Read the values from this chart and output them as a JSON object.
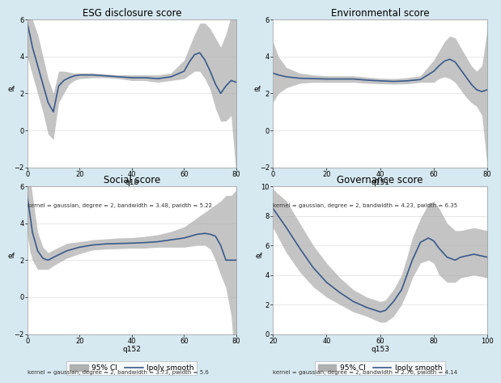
{
  "figure_bg": "#d6e8f0",
  "panel_bg": "#ffffff",
  "panels": [
    {
      "title": "ESG disclosure score",
      "xlabel": "q1b",
      "ylabel": "ef",
      "xlim": [
        0,
        80
      ],
      "ylim": [
        -2,
        6
      ],
      "yticks": [
        -2,
        0,
        2,
        4,
        6
      ],
      "xticks": [
        0,
        20,
        40,
        60,
        80
      ],
      "footnote": "kernel = gaussian, degree = 2, bandwidth = 3.48, pwidth = 5.22",
      "smooth_x": [
        0,
        1,
        2,
        4,
        6,
        8,
        10,
        12,
        14,
        16,
        18,
        20,
        25,
        30,
        35,
        40,
        45,
        50,
        55,
        60,
        62,
        64,
        66,
        68,
        70,
        72,
        74,
        76,
        78,
        80
      ],
      "smooth_y": [
        5.8,
        5.2,
        4.5,
        3.5,
        2.5,
        1.5,
        1.0,
        2.4,
        2.7,
        2.85,
        2.95,
        3.0,
        3.0,
        2.95,
        2.9,
        2.85,
        2.85,
        2.8,
        2.9,
        3.2,
        3.7,
        4.1,
        4.2,
        3.8,
        3.2,
        2.5,
        2.0,
        2.4,
        2.7,
        2.6
      ],
      "ci_upper": [
        7.5,
        6.8,
        6.0,
        5.2,
        4.0,
        2.8,
        2.0,
        3.2,
        3.2,
        3.15,
        3.1,
        3.1,
        3.1,
        3.05,
        3.0,
        3.0,
        3.0,
        3.0,
        3.1,
        3.8,
        4.5,
        5.2,
        5.8,
        5.8,
        5.5,
        5.0,
        4.5,
        5.2,
        6.2,
        7.0
      ],
      "ci_lower": [
        4.0,
        3.5,
        3.0,
        2.0,
        1.0,
        -0.2,
        -0.5,
        1.5,
        2.0,
        2.5,
        2.7,
        2.8,
        2.85,
        2.85,
        2.8,
        2.7,
        2.7,
        2.6,
        2.7,
        2.8,
        3.0,
        3.2,
        3.2,
        2.8,
        2.2,
        1.2,
        0.5,
        0.5,
        0.8,
        -2.5
      ]
    },
    {
      "title": "Environmental score",
      "xlabel": "q151",
      "ylabel": "ef",
      "xlim": [
        0,
        80
      ],
      "ylim": [
        -2,
        6
      ],
      "yticks": [
        -2,
        0,
        2,
        4,
        6
      ],
      "xticks": [
        0,
        20,
        40,
        60,
        80
      ],
      "footnote": "kernel = gaussian, degree = 2, bandwidth = 4.23, pwidth = 6.35",
      "smooth_x": [
        0,
        2,
        5,
        10,
        15,
        20,
        25,
        30,
        35,
        40,
        45,
        50,
        55,
        60,
        62,
        64,
        66,
        68,
        70,
        72,
        74,
        76,
        78,
        80
      ],
      "smooth_y": [
        3.1,
        3.0,
        2.9,
        2.82,
        2.8,
        2.78,
        2.78,
        2.78,
        2.72,
        2.68,
        2.65,
        2.68,
        2.75,
        3.2,
        3.5,
        3.75,
        3.85,
        3.7,
        3.3,
        2.9,
        2.5,
        2.2,
        2.1,
        2.2
      ],
      "ci_upper": [
        4.8,
        4.0,
        3.4,
        3.1,
        3.0,
        2.95,
        2.95,
        2.95,
        2.88,
        2.82,
        2.8,
        2.85,
        2.95,
        3.8,
        4.3,
        4.8,
        5.1,
        5.0,
        4.5,
        4.0,
        3.5,
        3.2,
        3.5,
        5.5
      ],
      "ci_lower": [
        1.5,
        2.0,
        2.3,
        2.55,
        2.6,
        2.6,
        2.6,
        2.6,
        2.55,
        2.52,
        2.5,
        2.52,
        2.6,
        2.6,
        2.8,
        2.9,
        2.8,
        2.6,
        2.2,
        1.8,
        1.5,
        1.3,
        0.8,
        -2.0
      ]
    },
    {
      "title": "Social score",
      "xlabel": "q152",
      "ylabel": "ef",
      "xlim": [
        0,
        80
      ],
      "ylim": [
        -2,
        6
      ],
      "yticks": [
        -2,
        0,
        2,
        4,
        6
      ],
      "xticks": [
        0,
        20,
        40,
        60,
        80
      ],
      "footnote": "kernel = gaussian, degree = 2, bandwidth = 3.73, pwidth = 5.6",
      "smooth_x": [
        0,
        1,
        2,
        4,
        6,
        8,
        10,
        15,
        20,
        25,
        30,
        35,
        40,
        45,
        50,
        55,
        60,
        65,
        68,
        70,
        72,
        74,
        76,
        78,
        80
      ],
      "smooth_y": [
        5.5,
        4.5,
        3.5,
        2.5,
        2.1,
        2.0,
        2.15,
        2.5,
        2.7,
        2.82,
        2.88,
        2.9,
        2.92,
        2.95,
        3.0,
        3.1,
        3.2,
        3.4,
        3.45,
        3.4,
        3.3,
        2.8,
        2.0,
        2.0,
        2.0
      ],
      "ci_upper": [
        7.5,
        6.5,
        5.5,
        3.5,
        2.7,
        2.4,
        2.55,
        2.9,
        3.0,
        3.1,
        3.15,
        3.2,
        3.22,
        3.28,
        3.38,
        3.55,
        3.8,
        4.3,
        4.6,
        4.8,
        5.0,
        5.2,
        5.5,
        5.5,
        5.8
      ],
      "ci_lower": [
        3.5,
        2.5,
        2.0,
        1.5,
        1.5,
        1.5,
        1.7,
        2.1,
        2.35,
        2.55,
        2.6,
        2.62,
        2.65,
        2.65,
        2.7,
        2.7,
        2.7,
        2.8,
        2.8,
        2.6,
        2.0,
        1.2,
        0.5,
        -1.0,
        -4.5
      ]
    },
    {
      "title": "Governance score",
      "xlabel": "q153",
      "ylabel": "ef",
      "xlim": [
        20,
        100
      ],
      "ylim": [
        0,
        10
      ],
      "yticks": [
        0,
        2,
        4,
        6,
        8,
        10
      ],
      "xticks": [
        20,
        40,
        60,
        80,
        100
      ],
      "footnote": "kernel = gaussian, degree = 2, bandwidth = 2.76, pwidth = 4.14",
      "smooth_x": [
        20,
        25,
        30,
        35,
        40,
        45,
        50,
        55,
        60,
        62,
        65,
        68,
        70,
        72,
        75,
        78,
        80,
        82,
        85,
        88,
        90,
        95,
        100
      ],
      "smooth_y": [
        8.5,
        7.2,
        5.8,
        4.5,
        3.5,
        2.8,
        2.2,
        1.8,
        1.5,
        1.6,
        2.2,
        3.0,
        4.0,
        5.0,
        6.2,
        6.5,
        6.3,
        5.8,
        5.2,
        5.0,
        5.2,
        5.4,
        5.2
      ],
      "ci_upper": [
        9.8,
        9.0,
        7.5,
        6.0,
        4.8,
        3.8,
        3.0,
        2.5,
        2.2,
        2.3,
        3.0,
        4.0,
        5.2,
        6.5,
        7.8,
        8.8,
        9.0,
        8.5,
        7.5,
        7.0,
        7.0,
        7.2,
        7.0
      ],
      "ci_lower": [
        7.2,
        5.5,
        4.2,
        3.2,
        2.5,
        2.0,
        1.5,
        1.2,
        0.8,
        0.8,
        1.2,
        2.0,
        2.8,
        3.8,
        4.8,
        5.0,
        4.8,
        4.0,
        3.5,
        3.5,
        3.8,
        4.0,
        3.8
      ]
    }
  ],
  "ci_color": "#b0b0b0",
  "line_color": "#3a5a8a",
  "line_width": 1.2,
  "grid_color": "#dddddd",
  "tick_fontsize": 6,
  "label_fontsize": 6.5,
  "title_fontsize": 8.5,
  "footnote_fontsize": 5.0,
  "legend_fontsize": 6.5
}
